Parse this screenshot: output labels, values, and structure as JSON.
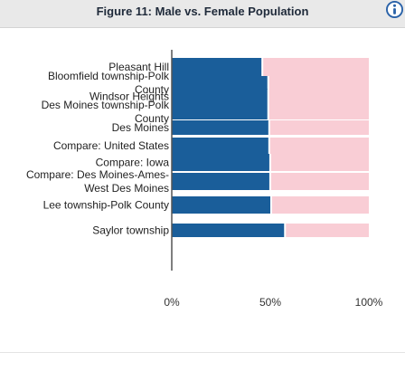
{
  "figure": {
    "title": "Figure 11: Male vs. Female Population"
  },
  "icons": {
    "info": "info-icon"
  },
  "colors": {
    "male": "#1a5e9a",
    "female": "#f9cdd5",
    "axis": "#555555",
    "label": "#222222"
  },
  "chart_data": {
    "type": "bar",
    "orientation": "horizontal",
    "stacked": true,
    "title": "Figure 11: Male vs. Female Population",
    "categories": [
      "Pleasant Hill",
      "Bloomfield township-Polk County",
      "Windsor Heights",
      "Des Moines township-Polk County",
      "Des Moines",
      "Compare: United States",
      "Compare: Iowa",
      "Compare: Des Moines-Ames-West Des Moines",
      "Lee township-Polk County",
      "Saylor township"
    ],
    "category_lines": [
      [
        "Pleasant Hill"
      ],
      [
        "Bloomfield township-Polk",
        "County"
      ],
      [
        "Windsor Heights"
      ],
      [
        "Des Moines township-Polk",
        "County"
      ],
      [
        "Des Moines"
      ],
      [
        "Compare: United States"
      ],
      [
        "Compare: Iowa"
      ],
      [
        "Compare: Des Moines-Ames-",
        "West Des Moines"
      ],
      [
        "Lee township-Polk County"
      ],
      [
        "Saylor township"
      ]
    ],
    "series": [
      {
        "values": [
          0.455,
          0.485,
          0.485,
          0.485,
          0.49,
          0.49,
          0.495,
          0.495,
          0.5,
          0.57
        ]
      },
      {
        "values": [
          0.545,
          0.515,
          0.515,
          0.515,
          0.51,
          0.51,
          0.505,
          0.505,
          0.5,
          0.43
        ]
      }
    ],
    "xlim": [
      0,
      1
    ],
    "xticks": [
      "0%",
      "50%",
      "100%"
    ],
    "grid": false
  }
}
